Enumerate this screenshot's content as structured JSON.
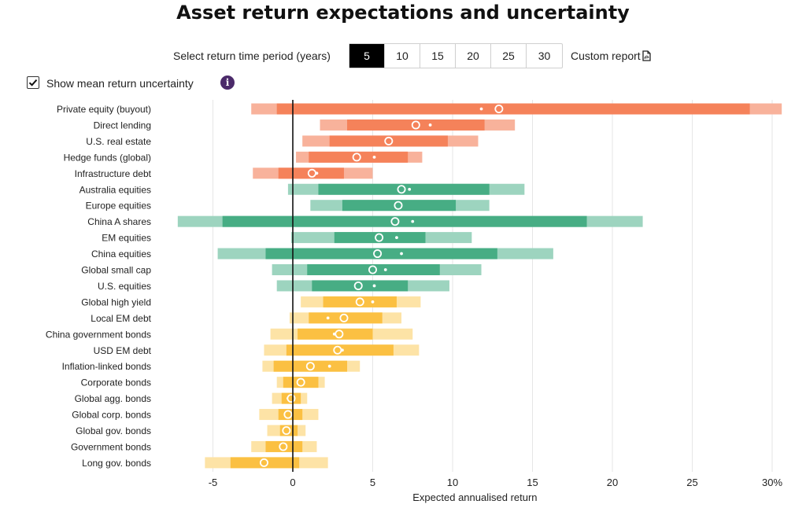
{
  "title": "Asset return expectations and uncertainty",
  "controls": {
    "period_label": "Select return time period (years)",
    "periods": [
      "5",
      "10",
      "15",
      "20",
      "25",
      "30"
    ],
    "selected_period": "5",
    "custom_report_label": "Custom report",
    "show_uncertainty_label": "Show mean return uncertainty",
    "show_uncertainty_checked": true
  },
  "colors": {
    "alternatives_dark": "#f5825a",
    "alternatives_light": "#f8b29b",
    "equities_dark": "#47ad84",
    "equities_light": "#9dd4bf",
    "fixed_income_dark": "#fbc042",
    "fixed_income_light": "#fde3a6",
    "zero_line": "#111111"
  },
  "chart_data": {
    "type": "range-bar",
    "xlabel": "Expected annualised return",
    "xlim": [
      -7,
      30
    ],
    "xticks": [
      -5,
      0,
      5,
      10,
      15,
      20,
      25,
      30
    ],
    "xtick_labels": [
      "-5",
      "0",
      "5",
      "10",
      "15",
      "20",
      "25",
      "30%"
    ],
    "grid": true,
    "assets": [
      {
        "name": "Private equity (buyout)",
        "group": "alternatives",
        "outer": [
          -2.6,
          30.6
        ],
        "inner": [
          -1.0,
          28.6
        ],
        "mean": 12.9,
        "mean_alt": 11.8
      },
      {
        "name": "Direct lending",
        "group": "alternatives",
        "outer": [
          1.7,
          13.9
        ],
        "inner": [
          3.4,
          12.0
        ],
        "mean": 7.7,
        "mean_alt": 8.6
      },
      {
        "name": "U.S. real estate",
        "group": "alternatives",
        "outer": [
          0.6,
          11.6
        ],
        "inner": [
          2.3,
          9.7
        ],
        "mean": 6.0,
        "mean_alt": null
      },
      {
        "name": "Hedge funds (global)",
        "group": "alternatives",
        "outer": [
          0.2,
          8.1
        ],
        "inner": [
          1.0,
          7.2
        ],
        "mean": 4.0,
        "mean_alt": 5.1
      },
      {
        "name": "Infrastructure debt",
        "group": "alternatives",
        "outer": [
          -2.5,
          5.0
        ],
        "inner": [
          -0.9,
          3.2
        ],
        "mean": 1.2,
        "mean_alt": 1.5
      },
      {
        "name": "Australia equities",
        "group": "equities",
        "outer": [
          -0.3,
          14.5
        ],
        "inner": [
          1.6,
          12.3
        ],
        "mean": 6.8,
        "mean_alt": 7.3
      },
      {
        "name": "Europe equities",
        "group": "equities",
        "outer": [
          1.1,
          12.3
        ],
        "inner": [
          3.1,
          10.2
        ],
        "mean": 6.6,
        "mean_alt": null
      },
      {
        "name": "China A shares",
        "group": "equities",
        "outer": [
          -7.2,
          21.9
        ],
        "inner": [
          -4.4,
          18.4
        ],
        "mean": 6.4,
        "mean_alt": 7.5
      },
      {
        "name": "EM equities",
        "group": "equities",
        "outer": [
          -0.1,
          11.2
        ],
        "inner": [
          2.6,
          8.3
        ],
        "mean": 5.4,
        "mean_alt": 6.5
      },
      {
        "name": "China equities",
        "group": "equities",
        "outer": [
          -4.7,
          16.3
        ],
        "inner": [
          -1.7,
          12.8
        ],
        "mean": 5.3,
        "mean_alt": 6.8
      },
      {
        "name": "Global small cap",
        "group": "equities",
        "outer": [
          -1.3,
          11.8
        ],
        "inner": [
          0.9,
          9.2
        ],
        "mean": 5.0,
        "mean_alt": 5.8
      },
      {
        "name": "U.S. equities",
        "group": "equities",
        "outer": [
          -1.0,
          9.8
        ],
        "inner": [
          1.2,
          7.2
        ],
        "mean": 4.1,
        "mean_alt": 5.1
      },
      {
        "name": "Global high yield",
        "group": "fixed_income",
        "outer": [
          0.5,
          8.0
        ],
        "inner": [
          1.9,
          6.5
        ],
        "mean": 4.2,
        "mean_alt": 5.0
      },
      {
        "name": "Local EM debt",
        "group": "fixed_income",
        "outer": [
          -0.2,
          6.8
        ],
        "inner": [
          1.0,
          5.6
        ],
        "mean": 3.2,
        "mean_alt": 2.2
      },
      {
        "name": "China government bonds",
        "group": "fixed_income",
        "outer": [
          -1.4,
          7.5
        ],
        "inner": [
          0.3,
          5.0
        ],
        "mean": 2.9,
        "mean_alt": 2.6
      },
      {
        "name": "USD EM debt",
        "group": "fixed_income",
        "outer": [
          -1.8,
          7.9
        ],
        "inner": [
          -0.4,
          6.3
        ],
        "mean": 2.8,
        "mean_alt": 3.1
      },
      {
        "name": "Inflation-linked bonds",
        "group": "fixed_income",
        "outer": [
          -1.9,
          4.2
        ],
        "inner": [
          -1.2,
          3.4
        ],
        "mean": 1.1,
        "mean_alt": 2.3
      },
      {
        "name": "Corporate bonds",
        "group": "fixed_income",
        "outer": [
          -1.0,
          2.0
        ],
        "inner": [
          -0.6,
          1.6
        ],
        "mean": 0.5,
        "mean_alt": null
      },
      {
        "name": "Global agg. bonds",
        "group": "fixed_income",
        "outer": [
          -1.3,
          0.9
        ],
        "inner": [
          -0.7,
          0.5
        ],
        "mean": -0.1,
        "mean_alt": -0.3
      },
      {
        "name": "Global corp. bonds",
        "group": "fixed_income",
        "outer": [
          -2.1,
          1.6
        ],
        "inner": [
          -0.9,
          0.6
        ],
        "mean": -0.3,
        "mean_alt": null
      },
      {
        "name": "Global gov. bonds",
        "group": "fixed_income",
        "outer": [
          -1.6,
          0.8
        ],
        "inner": [
          -0.8,
          0.3
        ],
        "mean": -0.4,
        "mean_alt": null
      },
      {
        "name": "Government bonds",
        "group": "fixed_income",
        "outer": [
          -2.6,
          1.5
        ],
        "inner": [
          -1.7,
          0.6
        ],
        "mean": -0.6,
        "mean_alt": null
      },
      {
        "name": "Long gov. bonds",
        "group": "fixed_income",
        "outer": [
          -5.5,
          2.2
        ],
        "inner": [
          -3.9,
          0.4
        ],
        "mean": -1.8,
        "mean_alt": null
      }
    ]
  }
}
